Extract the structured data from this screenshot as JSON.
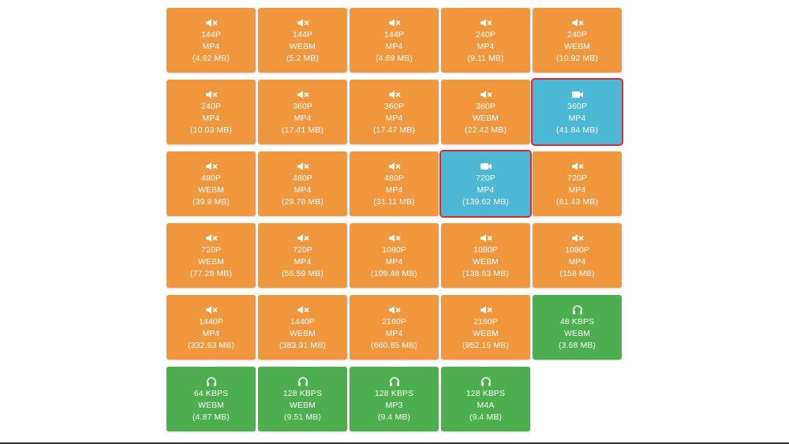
{
  "colors": {
    "video_only": "#f0973e",
    "video_with_audio": "#4cb8d6",
    "audio_only": "#4cae4f",
    "selection_outline": "#d9282f"
  },
  "buttons": [
    {
      "icon": "muted-speaker-icon",
      "quality": "144P",
      "format": "MP4",
      "size": "(4.62 MB)",
      "color": "orange",
      "selected": false
    },
    {
      "icon": "muted-speaker-icon",
      "quality": "144P",
      "format": "WEBM",
      "size": "(5.2 MB)",
      "color": "orange",
      "selected": false
    },
    {
      "icon": "muted-speaker-icon",
      "quality": "144P",
      "format": "MP4",
      "size": "(4.69 MB)",
      "color": "orange",
      "selected": false
    },
    {
      "icon": "muted-speaker-icon",
      "quality": "240P",
      "format": "MP4",
      "size": "(9.11 MB)",
      "color": "orange",
      "selected": false
    },
    {
      "icon": "muted-speaker-icon",
      "quality": "240P",
      "format": "WEBM",
      "size": "(10.92 MB)",
      "color": "orange",
      "selected": false
    },
    {
      "icon": "muted-speaker-icon",
      "quality": "240P",
      "format": "MP4",
      "size": "(10.03 MB)",
      "color": "orange",
      "selected": false
    },
    {
      "icon": "muted-speaker-icon",
      "quality": "360P",
      "format": "MP4",
      "size": "(17.41 MB)",
      "color": "orange",
      "selected": false
    },
    {
      "icon": "muted-speaker-icon",
      "quality": "360P",
      "format": "MP4",
      "size": "(17.47 MB)",
      "color": "orange",
      "selected": false
    },
    {
      "icon": "muted-speaker-icon",
      "quality": "360P",
      "format": "WEBM",
      "size": "(22.42 MB)",
      "color": "orange",
      "selected": false
    },
    {
      "icon": "video-camera-icon",
      "quality": "360P",
      "format": "MP4",
      "size": "(41.84 MB)",
      "color": "blue",
      "selected": true
    },
    {
      "icon": "muted-speaker-icon",
      "quality": "480P",
      "format": "WEBM",
      "size": "(39.9 MB)",
      "color": "orange",
      "selected": false
    },
    {
      "icon": "muted-speaker-icon",
      "quality": "480P",
      "format": "MP4",
      "size": "(29.78 MB)",
      "color": "orange",
      "selected": false
    },
    {
      "icon": "muted-speaker-icon",
      "quality": "480P",
      "format": "MP4",
      "size": "(31.11 MB)",
      "color": "orange",
      "selected": false
    },
    {
      "icon": "video-camera-icon",
      "quality": "720P",
      "format": "MP4",
      "size": "(139.62 MB)",
      "color": "blue",
      "selected": true
    },
    {
      "icon": "muted-speaker-icon",
      "quality": "720P",
      "format": "MP4",
      "size": "(61.43 MB)",
      "color": "orange",
      "selected": false
    },
    {
      "icon": "muted-speaker-icon",
      "quality": "720P",
      "format": "WEBM",
      "size": "(77.28 MB)",
      "color": "orange",
      "selected": false
    },
    {
      "icon": "muted-speaker-icon",
      "quality": "720P",
      "format": "MP4",
      "size": "(56.59 MB)",
      "color": "orange",
      "selected": false
    },
    {
      "icon": "muted-speaker-icon",
      "quality": "1080P",
      "format": "MP4",
      "size": "(109.48 MB)",
      "color": "orange",
      "selected": false
    },
    {
      "icon": "muted-speaker-icon",
      "quality": "1080P",
      "format": "WEBM",
      "size": "(138.63 MB)",
      "color": "orange",
      "selected": false
    },
    {
      "icon": "muted-speaker-icon",
      "quality": "1080P",
      "format": "MP4",
      "size": "(158 MB)",
      "color": "orange",
      "selected": false
    },
    {
      "icon": "muted-speaker-icon",
      "quality": "1440P",
      "format": "MP4",
      "size": "(332.63 MB)",
      "color": "orange",
      "selected": false
    },
    {
      "icon": "muted-speaker-icon",
      "quality": "1440P",
      "format": "WEBM",
      "size": "(383.91 MB)",
      "color": "orange",
      "selected": false
    },
    {
      "icon": "muted-speaker-icon",
      "quality": "2160P",
      "format": "MP4",
      "size": "(660.85 MB)",
      "color": "orange",
      "selected": false
    },
    {
      "icon": "muted-speaker-icon",
      "quality": "2160P",
      "format": "WEBM",
      "size": "(952.15 MB)",
      "color": "orange",
      "selected": false
    },
    {
      "icon": "headphones-icon",
      "quality": "48 KBPS",
      "format": "WEBM",
      "size": "(3.68 MB)",
      "color": "green",
      "selected": false
    },
    {
      "icon": "headphones-icon",
      "quality": "64 KBPS",
      "format": "WEBM",
      "size": "(4.87 MB)",
      "color": "green",
      "selected": false
    },
    {
      "icon": "headphones-icon",
      "quality": "128 KBPS",
      "format": "WEBM",
      "size": "(9.51 MB)",
      "color": "green",
      "selected": false
    },
    {
      "icon": "headphones-icon",
      "quality": "128 KBPS",
      "format": "MP3",
      "size": "(9.4 MB)",
      "color": "green",
      "selected": false
    },
    {
      "icon": "headphones-icon",
      "quality": "128 KBPS",
      "format": "M4A",
      "size": "(9.4 MB)",
      "color": "green",
      "selected": false
    }
  ]
}
